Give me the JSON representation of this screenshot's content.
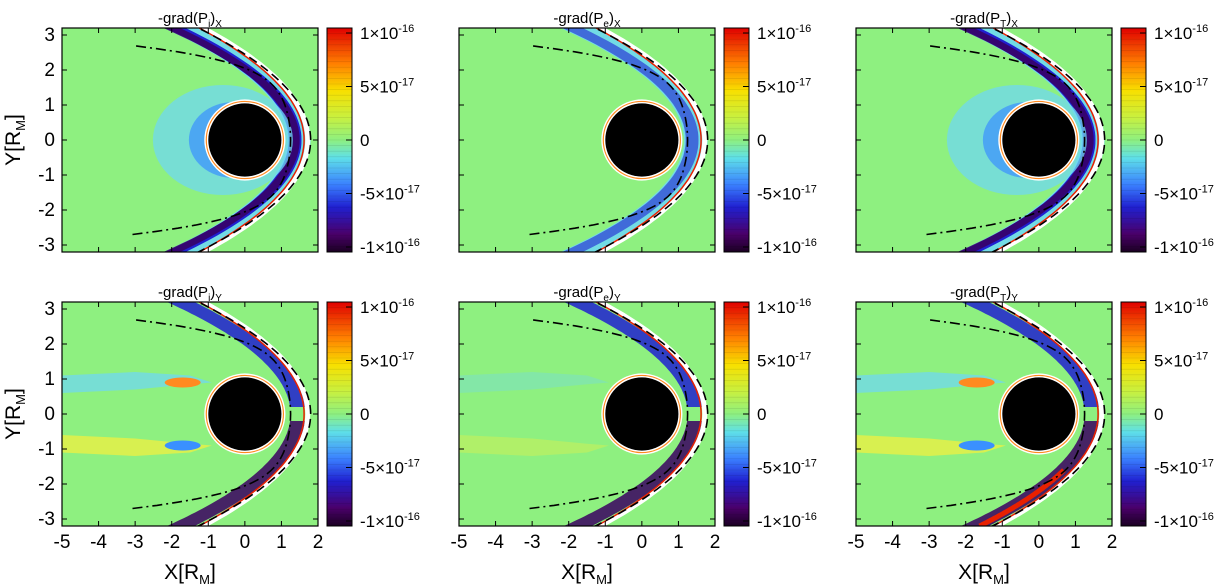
{
  "chart_data": {
    "type": "heatmap",
    "layout": {
      "rows": 2,
      "cols": 3
    },
    "xlabel": "X[R",
    "xlabel_sub": "M",
    "xlabel_end": "]",
    "ylabel": "Y[R",
    "ylabel_sub": "M",
    "ylabel_end": "]",
    "xlim": [
      -5,
      2
    ],
    "ylim": [
      -3.2,
      3.2
    ],
    "xticks": [
      "-5",
      "-4",
      "-3",
      "-2",
      "-1",
      "0",
      "1",
      "2"
    ],
    "yticks": [
      "3",
      "2",
      "1",
      "0",
      "-1",
      "-2",
      "-3"
    ],
    "colorbar": {
      "range": [
        -1e-16,
        1e-16
      ],
      "ticks": [
        {
          "value": 1e-16,
          "mant": "1",
          "exp": "-16",
          "zero": false
        },
        {
          "value": 5e-17,
          "mant": "5",
          "exp": "-17",
          "zero": false
        },
        {
          "value": 0,
          "mant": "0",
          "exp": "",
          "zero": true
        },
        {
          "value": -5e-17,
          "mant": "-5",
          "exp": "-17",
          "zero": false
        },
        {
          "value": -1e-16,
          "mant": "-1",
          "exp": "-16",
          "zero": false
        }
      ],
      "times": "×10"
    },
    "planet": {
      "center": [
        0,
        0
      ],
      "radius": 1
    },
    "panels": [
      {
        "title_pre": "-grad(P",
        "title_sub": "i",
        "title_mid": ")",
        "title_comp": "X",
        "kind": "x"
      },
      {
        "title_pre": "-grad(P",
        "title_sub": "e",
        "title_mid": ")",
        "title_comp": "X",
        "kind": "x"
      },
      {
        "title_pre": "-grad(P",
        "title_sub": "T",
        "title_mid": ")",
        "title_comp": "X",
        "kind": "x"
      },
      {
        "title_pre": "-grad(P",
        "title_sub": "i",
        "title_mid": ")",
        "title_comp": "Y",
        "kind": "y"
      },
      {
        "title_pre": "-grad(P",
        "title_sub": "e",
        "title_mid": ")",
        "title_comp": "Y",
        "kind": "y"
      },
      {
        "title_pre": "-grad(P",
        "title_sub": "T",
        "title_mid": ")",
        "title_comp": "Y",
        "kind": "y"
      }
    ]
  }
}
